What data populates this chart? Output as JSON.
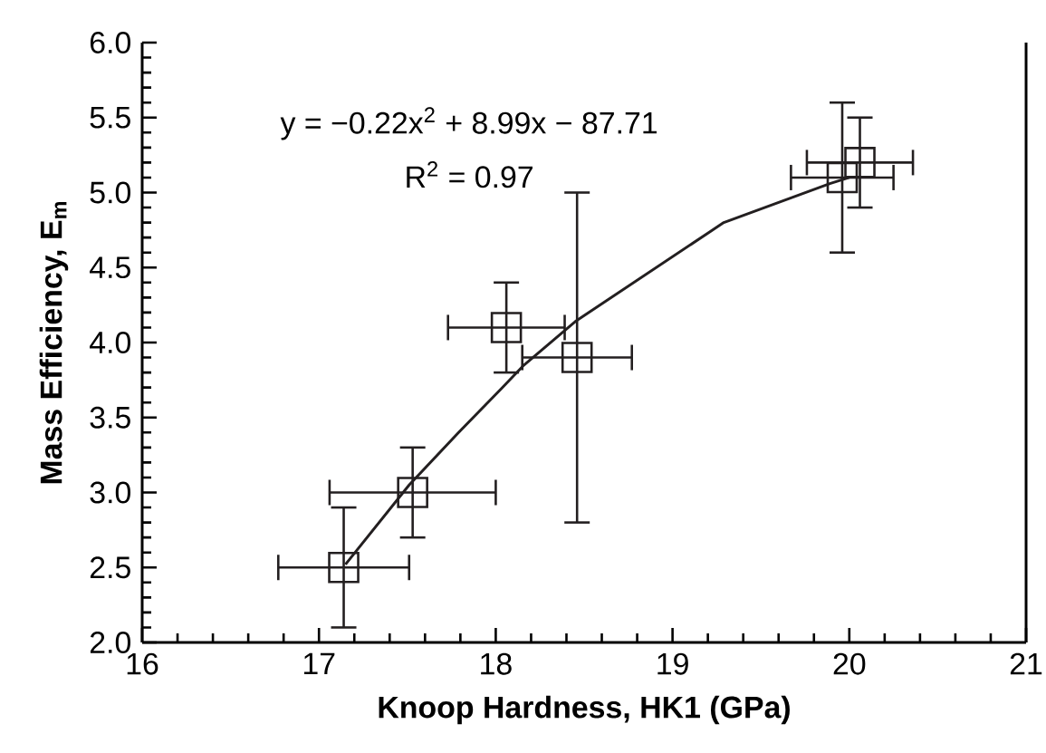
{
  "chart_data": {
    "type": "scatter",
    "xlabel": "Knoop Hardness, HK1 (GPa)",
    "ylabel": "Mass Efficiency, E$_{m}$",
    "annotations": [
      "y = −0.22x$^{2}$ + 8.99x − 87.71",
      "R$^{2}$ = 0.97"
    ],
    "xlim": [
      16,
      21
    ],
    "xticks": [
      16,
      17,
      18,
      19,
      20,
      21
    ],
    "ylim": [
      2,
      6
    ],
    "yticks": [
      {
        "value": 2,
        "label": "2.0"
      },
      {
        "value": 2.5,
        "label": "2.5"
      },
      {
        "value": 3,
        "label": "3.0"
      },
      {
        "value": 3.5,
        "label": "3.5"
      },
      {
        "value": 4,
        "label": "4.0"
      },
      {
        "value": 4.5,
        "label": "4.5"
      },
      {
        "value": 5,
        "label": "5.0"
      },
      {
        "value": 5.5,
        "label": "5.5"
      },
      {
        "value": 6,
        "label": "6.0"
      }
    ],
    "grid": false,
    "series": [
      {
        "color": "#231f20",
        "marker": "square",
        "x": [
          17.14,
          17.53,
          18.06,
          18.46,
          19.96,
          20.06
        ],
        "values": [
          2.5,
          3.0,
          4.1,
          3.9,
          5.1,
          5.2
        ],
        "errors": [
          0.4,
          0.3,
          0.3,
          1.1,
          0.5,
          0.3
        ],
        "xerrors": [
          0.37,
          0.47,
          0.33,
          0.31,
          0.29,
          0.3
        ]
      },
      {
        "type": "line",
        "color": "#231f20",
        "marker": "none",
        "line_style": "solid",
        "x": [
          17.15,
          17.51,
          17.79,
          18.03,
          18.16,
          18.45,
          19.29,
          19.89,
          20.0
        ],
        "values": [
          2.52,
          3.05,
          3.4,
          3.69,
          3.85,
          4.14,
          4.8,
          5.06,
          5.1
        ]
      }
    ]
  }
}
